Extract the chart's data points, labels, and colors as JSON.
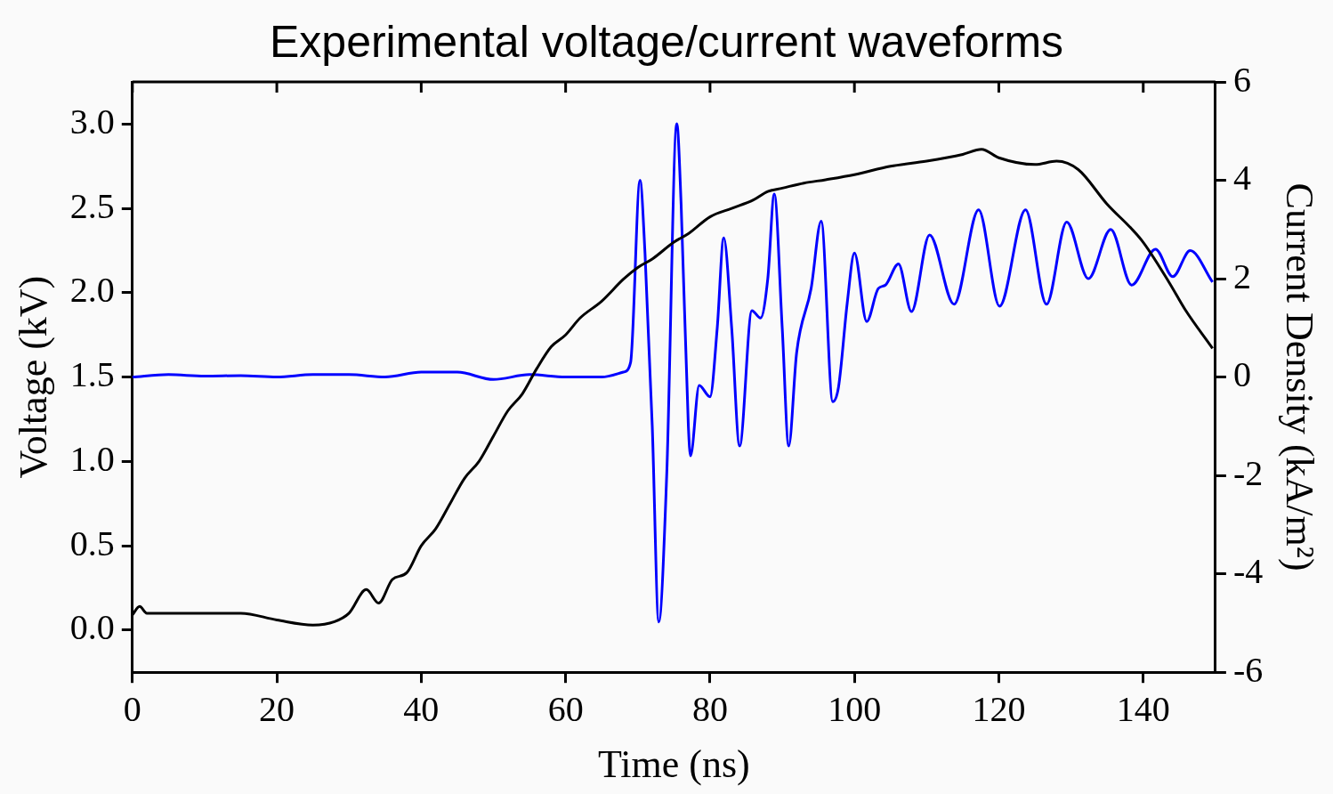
{
  "chart_data": {
    "type": "line",
    "title": "Experimental voltage/current waveforms",
    "xlabel": "Time (ns)",
    "ylabel": "Voltage (kV)",
    "y2label": "Current Density (kA/m²)",
    "xlim": [
      0,
      150
    ],
    "xticks": [
      0,
      20,
      40,
      60,
      80,
      100,
      120,
      140
    ],
    "ylim": [
      -0.25,
      3.25
    ],
    "yticks": [
      {
        "value": 0,
        "label": "0.0"
      },
      {
        "value": 0.5,
        "label": "0.5"
      },
      {
        "value": 1,
        "label": "1.0"
      },
      {
        "value": 1.5,
        "label": "1.5"
      },
      {
        "value": 2,
        "label": "2.0"
      },
      {
        "value": 2.5,
        "label": "2.5"
      },
      {
        "value": 3,
        "label": "3.0"
      }
    ],
    "y2lim": [
      -6,
      6
    ],
    "y2ticks": [
      -6,
      -4,
      -2,
      0,
      2,
      4,
      6
    ],
    "grid": false,
    "legend": false,
    "marker": "none",
    "line_style": "solid",
    "series": [
      {
        "color": "#000000",
        "x": [
          0,
          1,
          2,
          5,
          10,
          15,
          20,
          25,
          28,
          30,
          32.4,
          34.1,
          36,
          38,
          40,
          42,
          44,
          46,
          48,
          50,
          52,
          54,
          56,
          58,
          60,
          62,
          65,
          68,
          70,
          72,
          75,
          77,
          80,
          83,
          86,
          88,
          90,
          93,
          96,
          100,
          105,
          110,
          115,
          117.6,
          120,
          125,
          128,
          131,
          134.9,
          139.8,
          143.6,
          145.8,
          149.6
        ],
        "values": [
          0.09,
          0.14,
          0.1,
          0.1,
          0.1,
          0.1,
          0.06,
          0.03,
          0.05,
          0.1,
          0.24,
          0.16,
          0.3,
          0.34,
          0.5,
          0.6,
          0.75,
          0.9,
          1.0,
          1.15,
          1.3,
          1.4,
          1.55,
          1.68,
          1.75,
          1.85,
          1.95,
          2.08,
          2.15,
          2.2,
          2.3,
          2.35,
          2.45,
          2.5,
          2.55,
          2.6,
          2.62,
          2.65,
          2.67,
          2.7,
          2.75,
          2.78,
          2.82,
          2.85,
          2.8,
          2.76,
          2.78,
          2.73,
          2.53,
          2.31,
          2.06,
          1.9,
          1.67
        ]
      },
      {
        "color": "#0000ff",
        "axis": "y2",
        "x": [
          0,
          5,
          10,
          15,
          20,
          25,
          30,
          35,
          40,
          45,
          50,
          55,
          60,
          65,
          68,
          69,
          70.3,
          71,
          72,
          72.9,
          74,
          75.4,
          76,
          77,
          77.3,
          78.5,
          80,
          81,
          81.9,
          83,
          84.1,
          85.8,
          87,
          88,
          88.9,
          90,
          90.9,
          92,
          94,
          95.4,
          97,
          97.8,
          99,
          100,
          101.7,
          103.3,
          104.3,
          106.1,
          107.9,
          110.4,
          113.8,
          117.2,
          120.1,
          123.7,
          126.6,
          129.4,
          132.4,
          135.5,
          138.4,
          141.7,
          144.1,
          146.5,
          149.6
        ],
        "values": [
          0,
          0.05,
          0.02,
          0.03,
          0.0,
          0.05,
          0.05,
          0.0,
          0.1,
          0.1,
          -0.05,
          0.05,
          0.0,
          0.0,
          0.1,
          0.3,
          4.0,
          2.5,
          -1,
          -4.98,
          -2,
          5.15,
          3.5,
          -1,
          -1.6,
          -0.17,
          -0.4,
          1.0,
          2.83,
          1.0,
          -1.4,
          1.35,
          1.2,
          2.0,
          3.72,
          1.0,
          -1.4,
          0.5,
          1.8,
          3.17,
          -0.5,
          -0.2,
          1.5,
          2.52,
          1.13,
          1.8,
          1.87,
          2.3,
          1.33,
          2.89,
          1.48,
          3.4,
          1.44,
          3.4,
          1.48,
          3.15,
          2.0,
          3.0,
          1.87,
          2.6,
          2.04,
          2.57,
          1.93
        ]
      }
    ]
  }
}
